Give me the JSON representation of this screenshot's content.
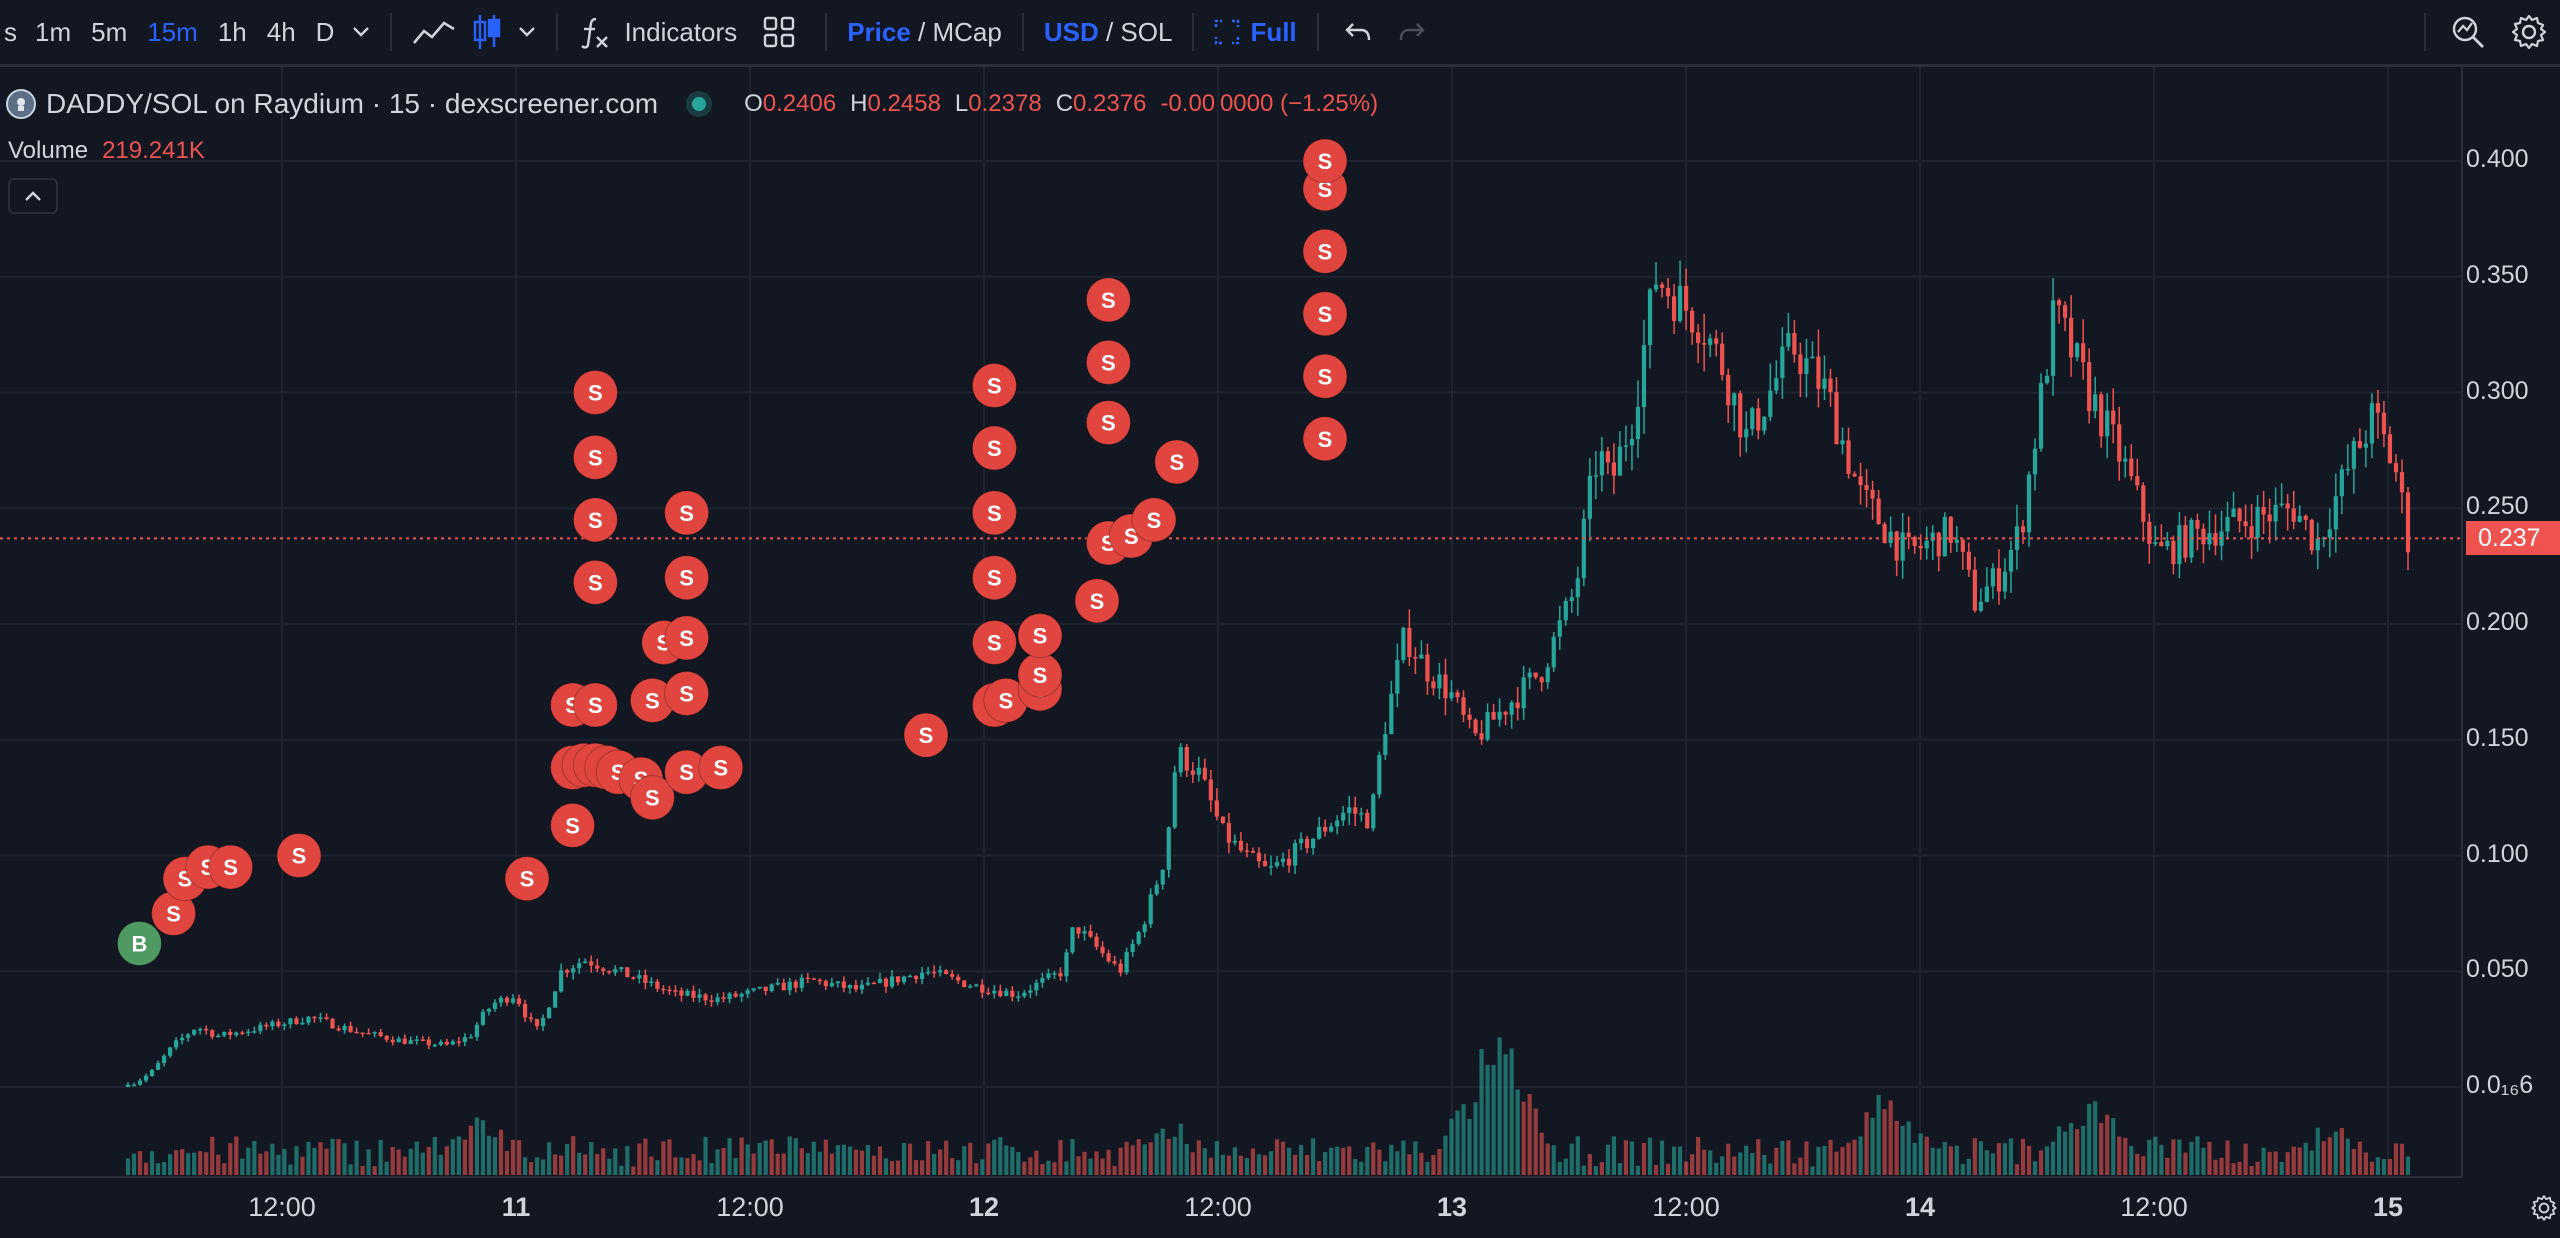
{
  "toolbar": {
    "timeframes": [
      "s",
      "1m",
      "5m",
      "15m",
      "1h",
      "4h",
      "D"
    ],
    "active_timeframe": "15m",
    "indicators_label": "Indicators",
    "price_label": "Price",
    "price_sep": " / ",
    "mcap_label": "MCap",
    "usd_label": "USD",
    "currency_sep": " / ",
    "sol_label": "SOL",
    "full_label": "Full"
  },
  "legend": {
    "symbol_title": "DADDY/SOL on Raydium · 15 · dexscreener.com",
    "open_key": "O",
    "open": "0.2406",
    "high_key": "H",
    "high": "0.2458",
    "low_key": "L",
    "low": "0.2378",
    "close_key": "C",
    "close": "0.2376",
    "change": "-0.00 0000 (−1.25%)",
    "volume_label": "Volume",
    "volume_value": "219.241K"
  },
  "price_axis": {
    "labels": [
      "0.400",
      "0.350",
      "0.300",
      "0.250",
      "0.200",
      "0.150",
      "0.100",
      "0.050",
      "0.0₁₆6"
    ],
    "current_price_tag": "0.237"
  },
  "time_axis": {
    "labels": [
      "12:00",
      "11",
      "12:00",
      "12",
      "12:00",
      "13",
      "12:00",
      "14",
      "12:00",
      "15"
    ]
  },
  "trade_markers": {
    "sell_letter": "S",
    "buy_letter": "B"
  },
  "colors": {
    "background": "#131722",
    "up": "#26a69a",
    "down": "#ef5350",
    "accent": "#2962ff",
    "grid": "#1f2330",
    "text": "#d1d4dc"
  },
  "chart_data": {
    "type": "candlestick",
    "title": "DADDY/SOL on Raydium · 15 · dexscreener.com",
    "price_range": [
      0.0,
      0.4
    ],
    "x_ticks": [
      "12:00",
      "11",
      "12:00",
      "12",
      "12:00",
      "13",
      "12:00",
      "14",
      "12:00",
      "15"
    ],
    "close_path": [
      [
        0,
        0.0
      ],
      [
        0.01,
        0.006
      ],
      [
        0.02,
        0.018
      ],
      [
        0.03,
        0.026
      ],
      [
        0.04,
        0.022
      ],
      [
        0.06,
        0.026
      ],
      [
        0.08,
        0.03
      ],
      [
        0.1,
        0.024
      ],
      [
        0.12,
        0.02
      ],
      [
        0.14,
        0.018
      ],
      [
        0.15,
        0.022
      ],
      [
        0.155,
        0.03
      ],
      [
        0.16,
        0.036
      ],
      [
        0.17,
        0.04
      ],
      [
        0.175,
        0.03
      ],
      [
        0.18,
        0.024
      ],
      [
        0.19,
        0.05
      ],
      [
        0.2,
        0.055
      ],
      [
        0.22,
        0.048
      ],
      [
        0.24,
        0.04
      ],
      [
        0.26,
        0.038
      ],
      [
        0.28,
        0.042
      ],
      [
        0.3,
        0.046
      ],
      [
        0.32,
        0.042
      ],
      [
        0.35,
        0.05
      ],
      [
        0.37,
        0.044
      ],
      [
        0.39,
        0.04
      ],
      [
        0.41,
        0.05
      ],
      [
        0.415,
        0.07
      ],
      [
        0.425,
        0.06
      ],
      [
        0.435,
        0.05
      ],
      [
        0.445,
        0.07
      ],
      [
        0.455,
        0.1
      ],
      [
        0.46,
        0.145
      ],
      [
        0.47,
        0.135
      ],
      [
        0.48,
        0.11
      ],
      [
        0.49,
        0.1
      ],
      [
        0.5,
        0.093
      ],
      [
        0.51,
        0.1
      ],
      [
        0.525,
        0.112
      ],
      [
        0.535,
        0.12
      ],
      [
        0.545,
        0.115
      ],
      [
        0.55,
        0.15
      ],
      [
        0.56,
        0.195
      ],
      [
        0.57,
        0.18
      ],
      [
        0.58,
        0.17
      ],
      [
        0.59,
        0.15
      ],
      [
        0.6,
        0.16
      ],
      [
        0.62,
        0.18
      ],
      [
        0.635,
        0.215
      ],
      [
        0.64,
        0.25
      ],
      [
        0.645,
        0.275
      ],
      [
        0.65,
        0.26
      ],
      [
        0.66,
        0.29
      ],
      [
        0.67,
        0.35
      ],
      [
        0.675,
        0.345
      ],
      [
        0.69,
        0.33
      ],
      [
        0.7,
        0.31
      ],
      [
        0.71,
        0.28
      ],
      [
        0.73,
        0.32
      ],
      [
        0.745,
        0.3
      ],
      [
        0.76,
        0.255
      ],
      [
        0.78,
        0.23
      ],
      [
        0.8,
        0.24
      ],
      [
        0.81,
        0.21
      ],
      [
        0.82,
        0.22
      ],
      [
        0.83,
        0.24
      ],
      [
        0.845,
        0.335
      ],
      [
        0.86,
        0.3
      ],
      [
        0.875,
        0.27
      ],
      [
        0.89,
        0.23
      ],
      [
        0.91,
        0.24
      ],
      [
        0.93,
        0.245
      ],
      [
        0.95,
        0.25
      ],
      [
        0.96,
        0.235
      ],
      [
        0.975,
        0.27
      ],
      [
        0.985,
        0.29
      ],
      [
        0.995,
        0.265
      ],
      [
        1.0,
        0.237
      ]
    ],
    "volume_spikes": [
      [
        0.155,
        0.4
      ],
      [
        0.315,
        0.3
      ],
      [
        0.46,
        0.35
      ],
      [
        0.6,
        1.0
      ],
      [
        0.77,
        0.55
      ],
      [
        0.86,
        0.55
      ],
      [
        0.965,
        0.35
      ]
    ],
    "sell_markers": [
      [
        0.02,
        0.075
      ],
      [
        0.025,
        0.09
      ],
      [
        0.035,
        0.095
      ],
      [
        0.045,
        0.095
      ],
      [
        0.075,
        0.1
      ],
      [
        0.175,
        0.09
      ],
      [
        0.195,
        0.113
      ],
      [
        0.195,
        0.138
      ],
      [
        0.2,
        0.139
      ],
      [
        0.205,
        0.139
      ],
      [
        0.21,
        0.138
      ],
      [
        0.215,
        0.136
      ],
      [
        0.225,
        0.133
      ],
      [
        0.23,
        0.125
      ],
      [
        0.245,
        0.136
      ],
      [
        0.26,
        0.138
      ],
      [
        0.195,
        0.165
      ],
      [
        0.205,
        0.165
      ],
      [
        0.23,
        0.167
      ],
      [
        0.245,
        0.17
      ],
      [
        0.235,
        0.192
      ],
      [
        0.245,
        0.194
      ],
      [
        0.205,
        0.218
      ],
      [
        0.245,
        0.22
      ],
      [
        0.205,
        0.245
      ],
      [
        0.245,
        0.248
      ],
      [
        0.205,
        0.272
      ],
      [
        0.205,
        0.3
      ],
      [
        0.35,
        0.152
      ],
      [
        0.38,
        0.165
      ],
      [
        0.385,
        0.167
      ],
      [
        0.4,
        0.172
      ],
      [
        0.4,
        0.178
      ],
      [
        0.38,
        0.192
      ],
      [
        0.4,
        0.195
      ],
      [
        0.38,
        0.22
      ],
      [
        0.38,
        0.248
      ],
      [
        0.38,
        0.276
      ],
      [
        0.38,
        0.303
      ],
      [
        0.425,
        0.21
      ],
      [
        0.43,
        0.235
      ],
      [
        0.44,
        0.238
      ],
      [
        0.45,
        0.245
      ],
      [
        0.46,
        0.27
      ],
      [
        0.43,
        0.287
      ],
      [
        0.43,
        0.313
      ],
      [
        0.43,
        0.34
      ],
      [
        0.525,
        0.28
      ],
      [
        0.525,
        0.307
      ],
      [
        0.525,
        0.334
      ],
      [
        0.525,
        0.361
      ],
      [
        0.525,
        0.388
      ],
      [
        0.525,
        0.4
      ]
    ],
    "buy_markers": [
      [
        0.005,
        0.062
      ]
    ]
  }
}
